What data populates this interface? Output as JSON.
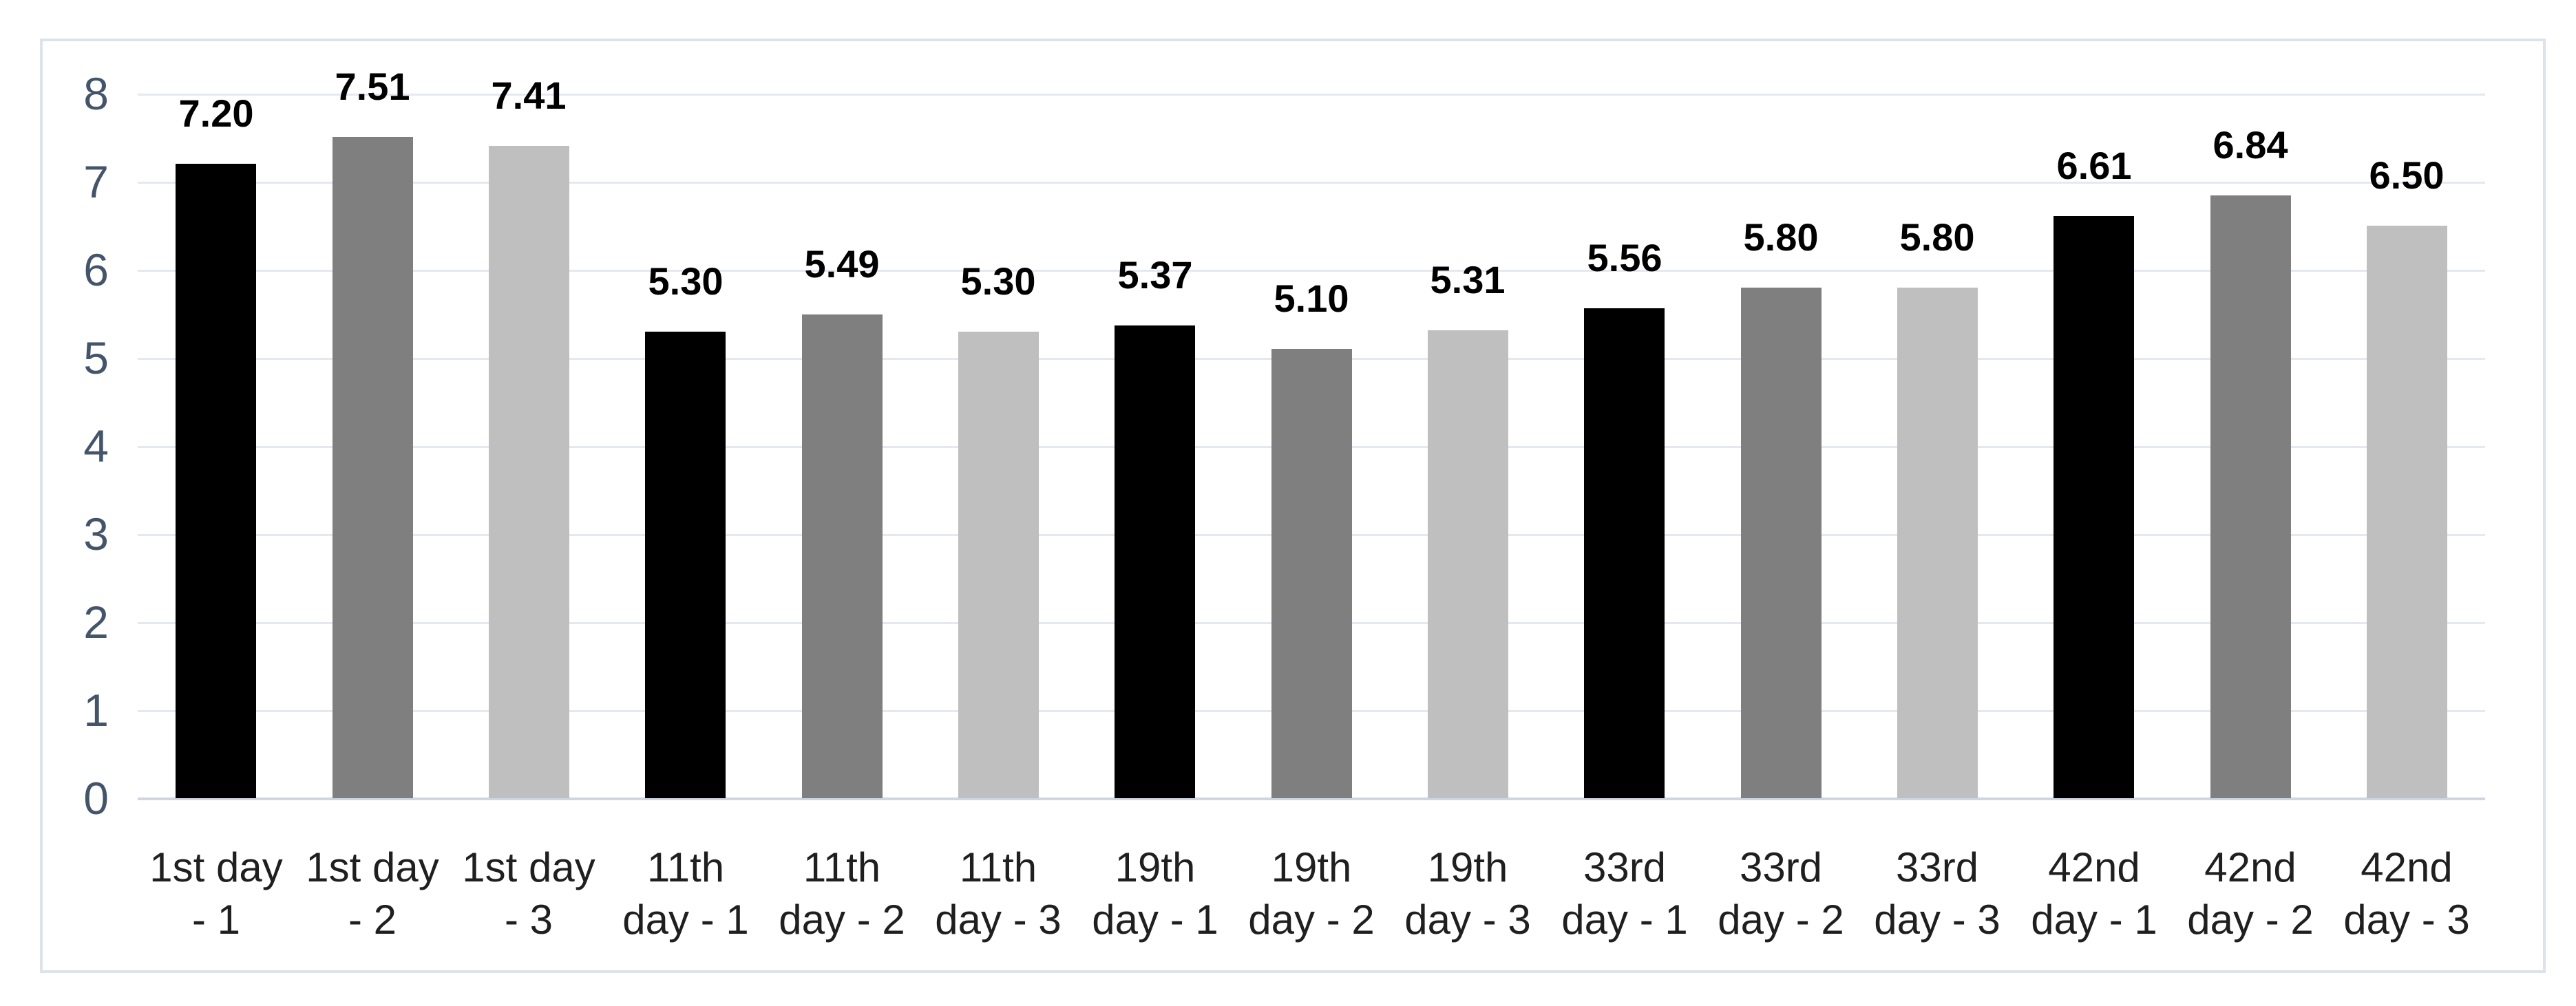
{
  "page": {
    "background_color": "#ffffff",
    "frame_border_color": "#dde3ea",
    "frame_background_color": "#ffffff"
  },
  "chart_data": {
    "type": "bar",
    "title": "",
    "categories": [
      "1st day - 1",
      "1st day - 2",
      "1st day - 3",
      "11th day - 1",
      "11th day - 2",
      "11th day - 3",
      "19th day - 1",
      "19th day - 2",
      "19th day - 3",
      "33rd day - 1",
      "33rd day - 2",
      "33rd day - 3",
      "42nd day - 1",
      "42nd day - 2",
      "42nd day - 3"
    ],
    "category_label_lines": [
      [
        "1st day",
        "- 1"
      ],
      [
        "1st day",
        "- 2"
      ],
      [
        "1st day",
        "- 3"
      ],
      [
        "11th",
        "day - 1"
      ],
      [
        "11th",
        "day - 2"
      ],
      [
        "11th",
        "day - 3"
      ],
      [
        "19th",
        "day - 1"
      ],
      [
        "19th",
        "day - 2"
      ],
      [
        "19th",
        "day - 3"
      ],
      [
        "33rd",
        "day - 1"
      ],
      [
        "33rd",
        "day - 2"
      ],
      [
        "33rd",
        "day - 3"
      ],
      [
        "42nd",
        "day - 1"
      ],
      [
        "42nd",
        "day - 2"
      ],
      [
        "42nd",
        "day - 3"
      ]
    ],
    "values": [
      7.2,
      7.51,
      7.41,
      5.3,
      5.49,
      5.3,
      5.37,
      5.1,
      5.31,
      5.56,
      5.8,
      5.8,
      6.61,
      6.84,
      6.5
    ],
    "data_labels": [
      "7.20",
      "7.51",
      "7.41",
      "5.30",
      "5.49",
      "5.30",
      "5.37",
      "5.10",
      "5.31",
      "5.56",
      "5.80",
      "5.80",
      "6.61",
      "6.84",
      "6.50"
    ],
    "bar_color_cycle": [
      "#000000",
      "#7f7f7f",
      "#bfbfbf"
    ],
    "ylim": [
      0,
      8
    ],
    "yticks": [
      "0",
      "1",
      "2",
      "3",
      "4",
      "5",
      "6",
      "7",
      "8"
    ],
    "grid": true,
    "legend_position": "none",
    "axis_styles": {
      "y_tick_label_color": "#44546a",
      "category_label_color": "#1f1f1f",
      "data_label_color": "#000000",
      "gridline_color": "#e4e9f1",
      "baseline_color": "#cfd6e2"
    }
  }
}
